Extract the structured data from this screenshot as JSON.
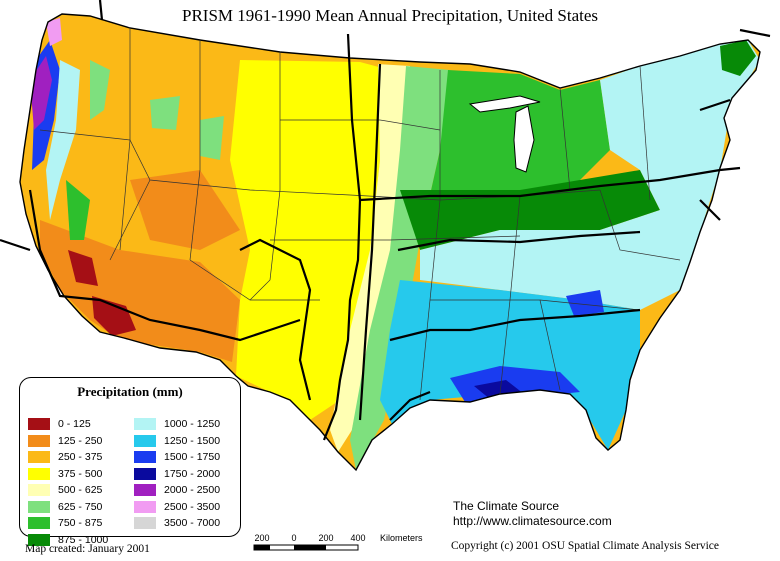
{
  "title": "PRISM 1961-1990 Mean Annual Precipitation, United States",
  "legend": {
    "title": "Precipitation (mm)",
    "items": [
      {
        "label": "0 - 125",
        "color": "#a50f15"
      },
      {
        "label": "125 - 250",
        "color": "#f28c1a"
      },
      {
        "label": "250 - 375",
        "color": "#fbb917"
      },
      {
        "label": "375 - 500",
        "color": "#ffff00"
      },
      {
        "label": "500 - 625",
        "color": "#ffffb3"
      },
      {
        "label": "625 - 750",
        "color": "#7ee07e"
      },
      {
        "label": "750 - 875",
        "color": "#2dbf2d"
      },
      {
        "label": "875 - 1000",
        "color": "#078a07"
      },
      {
        "label": "1000 - 1250",
        "color": "#b3f4f4"
      },
      {
        "label": "1250 - 1500",
        "color": "#26c9ec"
      },
      {
        "label": "1500 - 1750",
        "color": "#1a3cf0"
      },
      {
        "label": "1750 - 2000",
        "color": "#0a0a9e"
      },
      {
        "label": "2000 - 2500",
        "color": "#a020c0"
      },
      {
        "label": "2500 - 3500",
        "color": "#f19cf2"
      },
      {
        "label": "3500 - 7000",
        "color": "#d6d6d6"
      }
    ]
  },
  "source": {
    "line1": "The Climate Source",
    "line2": "http://www.climatesource.com"
  },
  "copyright": "Copyright (c) 2001 OSU Spatial Climate Analysis Service",
  "created": "Map created: January 2001",
  "scale": {
    "labels": [
      "200",
      "0",
      "200",
      "400"
    ],
    "units": "Kilometers"
  }
}
